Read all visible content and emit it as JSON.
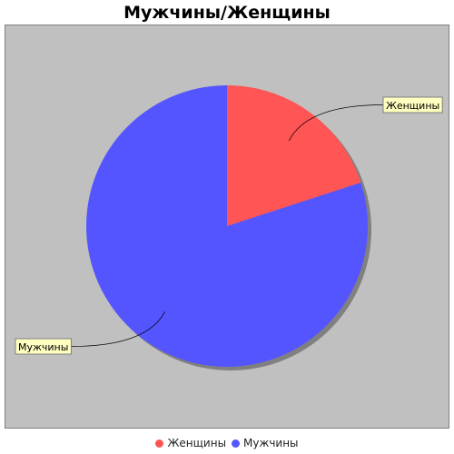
{
  "chart_data": {
    "type": "pie",
    "title": "Мужчины/Женщины",
    "slices": [
      {
        "label": "Женщины",
        "value": 20,
        "color": "#ff5555"
      },
      {
        "label": "Мужчины",
        "value": 80,
        "color": "#5555ff"
      }
    ],
    "legend_position": "bottom",
    "plot_background": "#c0c0c0"
  }
}
